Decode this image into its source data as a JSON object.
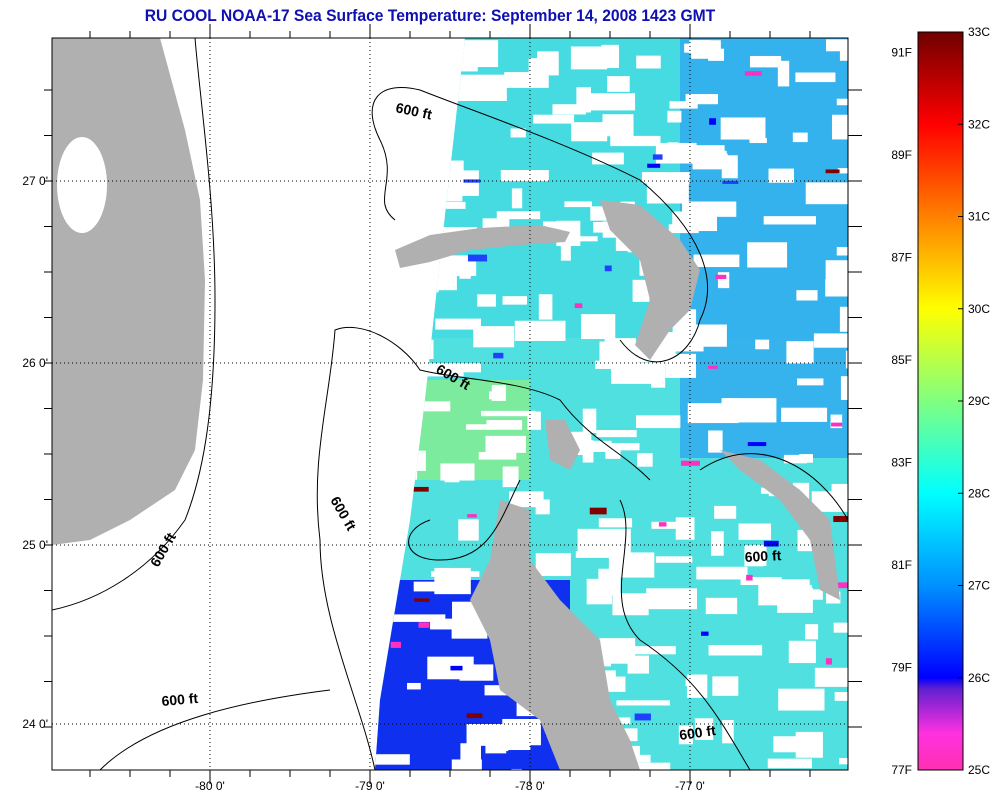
{
  "title": "RU COOL  NOAA-17  Sea Surface Temperature:  September 14, 2008 1423 GMT",
  "map": {
    "lat_ticks": [
      "27 0'",
      "26 0'",
      "25 0'",
      "24 0'"
    ],
    "lon_ticks": [
      "-80 0'",
      "-79 0'",
      "-78 0'",
      "-77 0'"
    ],
    "contour_label": "600 ft",
    "colors": {
      "land": "#b0b0b0",
      "cloud": "#ffffff",
      "frame": "#000000"
    }
  },
  "colorbar": {
    "fahrenheit_labels": [
      "91F",
      "89F",
      "87F",
      "85F",
      "83F",
      "81F",
      "79F",
      "77F"
    ],
    "celsius_labels": [
      "33C",
      "32C",
      "31C",
      "30C",
      "29C",
      "28C",
      "27C",
      "26C",
      "25C"
    ],
    "range_c": [
      25,
      33
    ]
  }
}
